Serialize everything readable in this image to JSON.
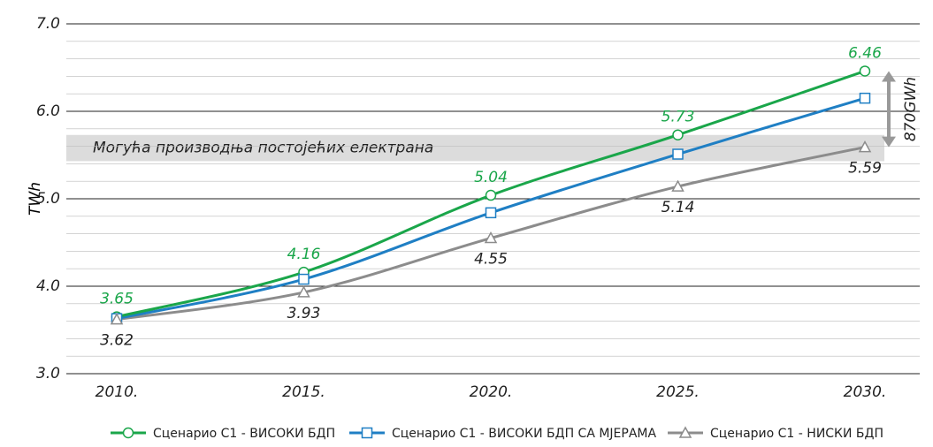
{
  "chart_data": {
    "type": "line",
    "y_label": "TWh",
    "categories": [
      "2010.",
      "2015.",
      "2020.",
      "2025.",
      "2030."
    ],
    "series": [
      {
        "name": "Сценарио С1 - ВИСОКИ БДП",
        "color": "#1aa64a",
        "marker": "circle",
        "show_labels": true,
        "label_position": "above",
        "values": [
          3.65,
          4.16,
          5.04,
          5.73,
          6.46
        ]
      },
      {
        "name": "Сценарио С1 - ВИСОКИ БДП СА МЈЕРАМА",
        "color": "#1f7fc4",
        "marker": "square",
        "show_labels": false,
        "label_position": "above",
        "values": [
          3.63,
          4.08,
          4.84,
          5.51,
          6.15
        ]
      },
      {
        "name": "Сценарио С1 - НИСКИ БДП",
        "color": "#8c8c8c",
        "marker": "triangle",
        "show_labels": true,
        "label_position": "below",
        "values": [
          3.62,
          3.93,
          4.55,
          5.14,
          5.59
        ]
      }
    ],
    "ylim": [
      3,
      7
    ],
    "yticks": [
      {
        "value": 3,
        "label": "3.0"
      },
      {
        "value": 4,
        "label": "4.0"
      },
      {
        "value": 5,
        "label": "5.0"
      },
      {
        "value": 6,
        "label": "6.0"
      },
      {
        "value": 7,
        "label": "7.0"
      }
    ],
    "minor_yticks": [
      3.2,
      3.4,
      3.6,
      3.8,
      4.2,
      4.4,
      4.6,
      4.8,
      5.2,
      5.4,
      5.6,
      5.8,
      6.2,
      6.4,
      6.6,
      6.8
    ],
    "grid": true,
    "band": {
      "range": [
        5.43,
        5.73
      ],
      "label": "Могућа производња постојећих електрана"
    },
    "difference": {
      "range": [
        5.59,
        6.46
      ],
      "label": "870GWh"
    },
    "legend": "bottom"
  }
}
